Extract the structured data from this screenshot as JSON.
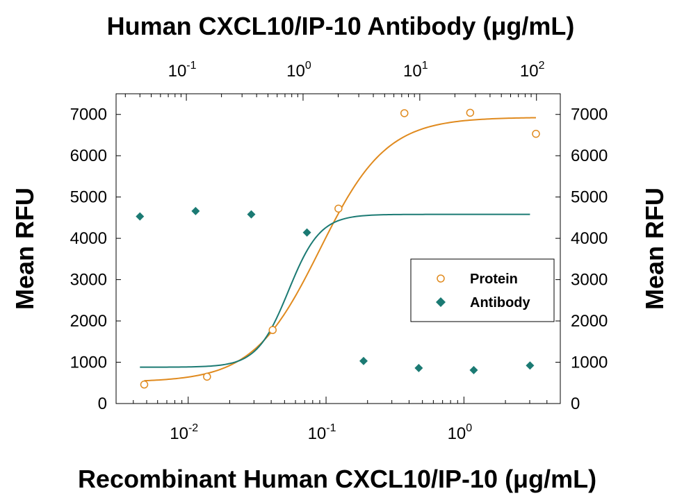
{
  "chart_data": {
    "type": "scatter",
    "title": "Human CXCL10/IP-10 Antibody (μg/mL)",
    "xlabel": "Recombinant Human CXCL10/IP-10 (μg/mL)",
    "ylabel": "Mean RFU",
    "ylabel_right": "Mean RFU",
    "ylim": [
      0,
      7500
    ],
    "xlim": [
      0.003,
      5
    ],
    "x_scale": "log",
    "x2_scale": "log",
    "x2lim": [
      0.025,
      160
    ],
    "yticks": [
      0,
      1000,
      2000,
      3000,
      4000,
      5000,
      6000,
      7000
    ],
    "ytick_labels": [
      "0",
      "1000",
      "2000",
      "3000",
      "4000",
      "5000",
      "6000",
      "7000"
    ],
    "xticks": [
      {
        "value": 0.01,
        "base": "10",
        "exp": "-2"
      },
      {
        "value": 0.1,
        "base": "10",
        "exp": "-1"
      },
      {
        "value": 1,
        "base": "10",
        "exp": "0"
      }
    ],
    "x2ticks": [
      {
        "value": 0.1,
        "base": "10",
        "exp": "-1"
      },
      {
        "value": 1,
        "base": "10",
        "exp": "0"
      },
      {
        "value": 10,
        "base": "10",
        "exp": "1"
      },
      {
        "value": 100,
        "base": "10",
        "exp": "2"
      }
    ],
    "legend_position": "right",
    "series": [
      {
        "name": "Protein",
        "axis": "bottom",
        "marker": "open-circle",
        "color": "#E08A1E",
        "x": [
          0.0048,
          0.0137,
          0.041,
          0.123,
          0.37,
          1.11,
          3.33
        ],
        "y": [
          460,
          650,
          1780,
          4720,
          7030,
          7040,
          6530
        ],
        "fit": {
          "bottom": 520,
          "top": 6930,
          "ec50": 0.09,
          "hill": 1.8
        }
      },
      {
        "name": "Antibody",
        "axis": "top",
        "marker": "filled-diamond",
        "color": "#1B7A73",
        "x": [
          0.04,
          0.12,
          0.36,
          1.08,
          3.3,
          9.8,
          29,
          88
        ],
        "y": [
          4530,
          4660,
          4580,
          4140,
          1030,
          860,
          810,
          920
        ],
        "fit": {
          "bottom": 880,
          "top": 4580,
          "ec50": 0.75,
          "hill": 3.2
        }
      }
    ]
  }
}
